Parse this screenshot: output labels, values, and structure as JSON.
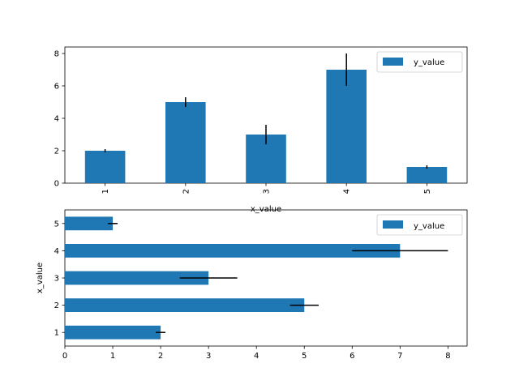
{
  "chart_data": [
    {
      "type": "bar",
      "orientation": "vertical",
      "categories": [
        "1",
        "2",
        "3",
        "4",
        "5"
      ],
      "series": [
        {
          "name": "y_value",
          "values": [
            2,
            5,
            3,
            7,
            1
          ],
          "errors": [
            0.1,
            0.3,
            0.6,
            1.0,
            0.1
          ]
        }
      ],
      "xlabel": "x_value",
      "ylabel": "",
      "ylim": [
        0,
        8.4
      ],
      "yticks": [
        0,
        2,
        4,
        6,
        8
      ],
      "tick_rotation": 90,
      "legend": "top-right",
      "grid": false,
      "color": "#1f77b4"
    },
    {
      "type": "bar",
      "orientation": "horizontal",
      "categories": [
        "1",
        "2",
        "3",
        "4",
        "5"
      ],
      "series": [
        {
          "name": "y_value",
          "values": [
            2,
            5,
            3,
            7,
            1
          ],
          "errors": [
            0.1,
            0.3,
            0.6,
            1.0,
            0.1
          ]
        }
      ],
      "xlabel": "",
      "ylabel": "x_value",
      "xlim": [
        0,
        8.4
      ],
      "xticks": [
        0,
        1,
        2,
        3,
        4,
        5,
        6,
        7,
        8
      ],
      "legend": "top-right",
      "grid": false,
      "color": "#1f77b4"
    }
  ]
}
